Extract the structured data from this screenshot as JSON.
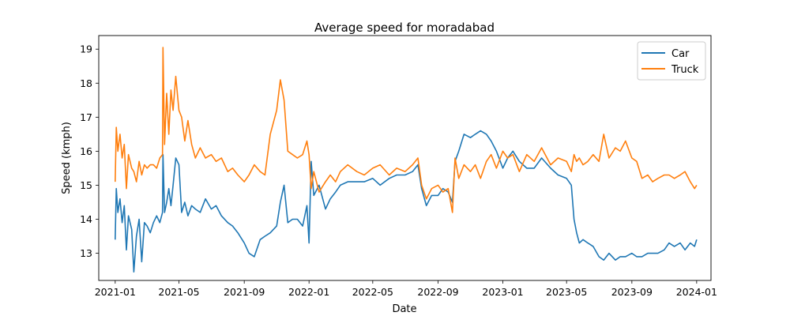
{
  "chart_data": {
    "type": "line",
    "title": "Average speed for moradabad",
    "xlabel": "Date",
    "ylabel": "Speed (kmph)",
    "xlim": [
      "2020-12-01",
      "2024-01-28"
    ],
    "ylim": [
      12.2,
      19.4
    ],
    "xticks": [
      "2021-01",
      "2021-05",
      "2021-09",
      "2022-01",
      "2022-05",
      "2022-09",
      "2023-01",
      "2023-05",
      "2023-09",
      "2024-01"
    ],
    "yticks": [
      13,
      14,
      15,
      16,
      17,
      18,
      19
    ],
    "grid": false,
    "legend": "top-right",
    "series": [
      {
        "name": "Car",
        "color": "#1f77b4",
        "x": [
          "2021-01-01",
          "2021-01-03",
          "2021-01-06",
          "2021-01-10",
          "2021-01-14",
          "2021-01-18",
          "2021-01-22",
          "2021-01-26",
          "2021-02-01",
          "2021-02-05",
          "2021-02-10",
          "2021-02-15",
          "2021-02-20",
          "2021-02-25",
          "2021-03-02",
          "2021-03-08",
          "2021-03-14",
          "2021-03-20",
          "2021-03-26",
          "2021-03-31",
          "2021-04-01",
          "2021-04-04",
          "2021-04-08",
          "2021-04-12",
          "2021-04-16",
          "2021-04-20",
          "2021-04-25",
          "2021-05-01",
          "2021-05-06",
          "2021-05-12",
          "2021-05-18",
          "2021-05-25",
          "2021-06-01",
          "2021-06-10",
          "2021-06-20",
          "2021-07-01",
          "2021-07-10",
          "2021-07-20",
          "2021-08-01",
          "2021-08-10",
          "2021-08-20",
          "2021-09-01",
          "2021-09-10",
          "2021-09-20",
          "2021-10-01",
          "2021-10-10",
          "2021-10-20",
          "2021-11-01",
          "2021-11-08",
          "2021-11-15",
          "2021-11-22",
          "2021-12-01",
          "2021-12-10",
          "2021-12-20",
          "2021-12-28",
          "2022-01-01",
          "2022-01-05",
          "2022-01-10",
          "2022-01-20",
          "2022-02-01",
          "2022-02-10",
          "2022-02-20",
          "2022-03-01",
          "2022-03-15",
          "2022-04-01",
          "2022-04-15",
          "2022-05-01",
          "2022-05-15",
          "2022-06-01",
          "2022-06-15",
          "2022-07-01",
          "2022-07-15",
          "2022-07-25",
          "2022-08-01",
          "2022-08-10",
          "2022-08-20",
          "2022-09-01",
          "2022-09-10",
          "2022-09-20",
          "2022-09-28",
          "2022-10-03",
          "2022-10-10",
          "2022-10-20",
          "2022-11-01",
          "2022-11-10",
          "2022-11-20",
          "2022-12-01",
          "2022-12-10",
          "2022-12-20",
          "2023-01-01",
          "2023-01-10",
          "2023-01-20",
          "2023-02-01",
          "2023-02-15",
          "2023-03-01",
          "2023-03-15",
          "2023-04-01",
          "2023-04-15",
          "2023-05-01",
          "2023-05-10",
          "2023-05-15",
          "2023-05-20",
          "2023-05-25",
          "2023-06-01",
          "2023-06-10",
          "2023-06-20",
          "2023-07-01",
          "2023-07-10",
          "2023-07-20",
          "2023-08-01",
          "2023-08-10",
          "2023-08-20",
          "2023-09-01",
          "2023-09-10",
          "2023-09-20",
          "2023-10-01",
          "2023-10-10",
          "2023-10-20",
          "2023-11-01",
          "2023-11-10",
          "2023-11-20",
          "2023-12-01",
          "2023-12-10",
          "2023-12-20",
          "2023-12-28",
          "2024-01-01"
        ],
        "y": [
          13.4,
          14.9,
          14.2,
          14.6,
          13.9,
          14.4,
          13.1,
          14.1,
          13.7,
          12.45,
          13.5,
          14.0,
          12.75,
          13.9,
          13.8,
          13.6,
          13.9,
          14.1,
          13.9,
          14.2,
          15.9,
          14.2,
          14.5,
          14.9,
          14.4,
          15.0,
          15.8,
          15.6,
          14.2,
          14.5,
          14.1,
          14.4,
          14.3,
          14.2,
          14.6,
          14.3,
          14.4,
          14.1,
          13.9,
          13.8,
          13.6,
          13.3,
          13.0,
          12.9,
          13.4,
          13.5,
          13.6,
          13.8,
          14.5,
          15.0,
          13.9,
          14.0,
          14.0,
          13.8,
          14.4,
          13.3,
          15.7,
          14.7,
          15.0,
          14.3,
          14.6,
          14.8,
          15.0,
          15.1,
          15.1,
          15.1,
          15.2,
          15.0,
          15.2,
          15.3,
          15.3,
          15.4,
          15.6,
          14.9,
          14.4,
          14.7,
          14.7,
          14.9,
          14.8,
          14.5,
          15.7,
          16.0,
          16.5,
          16.4,
          16.5,
          16.6,
          16.5,
          16.3,
          16.0,
          15.5,
          15.8,
          16.0,
          15.7,
          15.5,
          15.5,
          15.8,
          15.5,
          15.3,
          15.2,
          15.0,
          14.0,
          13.6,
          13.3,
          13.4,
          13.3,
          13.2,
          12.9,
          12.8,
          13.0,
          12.8,
          12.9,
          12.9,
          13.0,
          12.9,
          12.9,
          13.0,
          13.0,
          13.0,
          13.1,
          13.3,
          13.2,
          13.3,
          13.1,
          13.3,
          13.2,
          13.4
        ]
      },
      {
        "name": "Truck",
        "color": "#ff7f0e",
        "x": [
          "2021-01-01",
          "2021-01-03",
          "2021-01-06",
          "2021-01-10",
          "2021-01-14",
          "2021-01-18",
          "2021-01-22",
          "2021-01-26",
          "2021-02-01",
          "2021-02-05",
          "2021-02-10",
          "2021-02-15",
          "2021-02-20",
          "2021-02-25",
          "2021-03-02",
          "2021-03-08",
          "2021-03-14",
          "2021-03-20",
          "2021-03-26",
          "2021-03-31",
          "2021-04-01",
          "2021-04-04",
          "2021-04-08",
          "2021-04-12",
          "2021-04-16",
          "2021-04-20",
          "2021-04-25",
          "2021-05-01",
          "2021-05-06",
          "2021-05-12",
          "2021-05-18",
          "2021-05-25",
          "2021-06-01",
          "2021-06-10",
          "2021-06-20",
          "2021-07-01",
          "2021-07-10",
          "2021-07-20",
          "2021-08-01",
          "2021-08-10",
          "2021-08-20",
          "2021-09-01",
          "2021-09-10",
          "2021-09-20",
          "2021-10-01",
          "2021-10-10",
          "2021-10-20",
          "2021-11-01",
          "2021-11-08",
          "2021-11-15",
          "2021-11-22",
          "2021-12-01",
          "2021-12-10",
          "2021-12-20",
          "2021-12-28",
          "2022-01-01",
          "2022-01-05",
          "2022-01-10",
          "2022-01-20",
          "2022-02-01",
          "2022-02-10",
          "2022-02-20",
          "2022-03-01",
          "2022-03-15",
          "2022-04-01",
          "2022-04-15",
          "2022-05-01",
          "2022-05-15",
          "2022-06-01",
          "2022-06-15",
          "2022-07-01",
          "2022-07-15",
          "2022-07-25",
          "2022-08-01",
          "2022-08-10",
          "2022-08-20",
          "2022-09-01",
          "2022-09-10",
          "2022-09-20",
          "2022-09-28",
          "2022-10-03",
          "2022-10-10",
          "2022-10-20",
          "2022-11-01",
          "2022-11-10",
          "2022-11-20",
          "2022-12-01",
          "2022-12-10",
          "2022-12-20",
          "2023-01-01",
          "2023-01-10",
          "2023-01-20",
          "2023-02-01",
          "2023-02-15",
          "2023-03-01",
          "2023-03-15",
          "2023-04-01",
          "2023-04-15",
          "2023-05-01",
          "2023-05-10",
          "2023-05-15",
          "2023-05-20",
          "2023-05-25",
          "2023-06-01",
          "2023-06-10",
          "2023-06-20",
          "2023-07-01",
          "2023-07-10",
          "2023-07-20",
          "2023-08-01",
          "2023-08-10",
          "2023-08-20",
          "2023-09-01",
          "2023-09-10",
          "2023-09-20",
          "2023-10-01",
          "2023-10-10",
          "2023-10-20",
          "2023-11-01",
          "2023-11-10",
          "2023-11-20",
          "2023-12-01",
          "2023-12-10",
          "2023-12-20",
          "2023-12-28",
          "2024-01-01"
        ],
        "y": [
          15.1,
          16.7,
          16.0,
          16.5,
          15.8,
          16.2,
          14.9,
          15.9,
          15.5,
          15.4,
          15.1,
          15.7,
          15.3,
          15.6,
          15.5,
          15.6,
          15.6,
          15.5,
          15.8,
          15.9,
          19.05,
          16.2,
          17.7,
          16.5,
          17.8,
          17.2,
          18.2,
          17.2,
          17.0,
          16.3,
          16.9,
          16.2,
          15.8,
          16.1,
          15.8,
          15.9,
          15.7,
          15.8,
          15.4,
          15.5,
          15.3,
          15.1,
          15.3,
          15.6,
          15.4,
          15.3,
          16.5,
          17.2,
          18.1,
          17.5,
          16.0,
          15.9,
          15.8,
          15.9,
          16.3,
          15.9,
          14.9,
          15.4,
          14.8,
          15.1,
          15.3,
          15.1,
          15.4,
          15.6,
          15.4,
          15.3,
          15.5,
          15.6,
          15.3,
          15.5,
          15.4,
          15.6,
          15.8,
          15.0,
          14.6,
          14.9,
          15.0,
          14.8,
          14.9,
          14.2,
          15.8,
          15.2,
          15.6,
          15.4,
          15.6,
          15.2,
          15.7,
          15.9,
          15.5,
          16.0,
          15.8,
          15.9,
          15.4,
          15.9,
          15.7,
          16.1,
          15.6,
          15.8,
          15.7,
          15.4,
          15.9,
          15.7,
          15.8,
          15.6,
          15.7,
          15.9,
          15.7,
          16.5,
          15.8,
          16.1,
          16.0,
          16.3,
          15.8,
          15.7,
          15.2,
          15.3,
          15.1,
          15.2,
          15.3,
          15.3,
          15.2,
          15.3,
          15.4,
          15.1,
          14.9,
          15.0
        ]
      }
    ]
  }
}
